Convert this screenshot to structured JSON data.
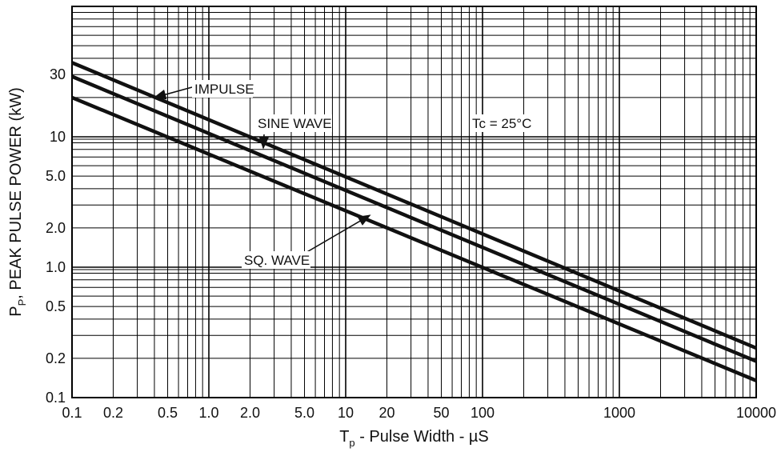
{
  "chart_data": {
    "type": "line",
    "x_scale": "log",
    "y_scale": "log",
    "xlim": [
      0.1,
      10000
    ],
    "ylim": [
      0.1,
      100
    ],
    "grid": true,
    "x_ticks": [
      {
        "value": 0.1,
        "label": "0.1"
      },
      {
        "value": 0.2,
        "label": "0.2"
      },
      {
        "value": 0.5,
        "label": "0.5"
      },
      {
        "value": 1,
        "label": "1.0"
      },
      {
        "value": 2,
        "label": "2.0"
      },
      {
        "value": 5,
        "label": "5.0"
      },
      {
        "value": 10,
        "label": "10"
      },
      {
        "value": 20,
        "label": "20"
      },
      {
        "value": 50,
        "label": "50"
      },
      {
        "value": 100,
        "label": "100"
      },
      {
        "value": 1000,
        "label": "1000"
      },
      {
        "value": 10000,
        "label": "10000"
      }
    ],
    "y_ticks": [
      {
        "value": 0.1,
        "label": "0.1"
      },
      {
        "value": 0.2,
        "label": "0.2"
      },
      {
        "value": 0.5,
        "label": "0.5"
      },
      {
        "value": 1,
        "label": "1.0"
      },
      {
        "value": 2,
        "label": "2.0"
      },
      {
        "value": 5,
        "label": "5.0"
      },
      {
        "value": 10,
        "label": "10"
      },
      {
        "value": 30,
        "label": "30"
      }
    ],
    "xlabel": {
      "main": "T",
      "sub": "p",
      "rest": " - Pulse Width - µS"
    },
    "ylabel": {
      "main": "P",
      "sub": "P",
      "rest": ", PEAK PULSE POWER (kW)"
    },
    "series": [
      {
        "name": "IMPULSE",
        "x": [
          0.1,
          10000
        ],
        "y": [
          37,
          0.24
        ]
      },
      {
        "name": "SINE WAVE",
        "x": [
          0.1,
          10000
        ],
        "y": [
          29,
          0.19
        ]
      },
      {
        "name": "SQ. WAVE",
        "x": [
          0.1,
          10000
        ],
        "y": [
          20,
          0.135
        ]
      }
    ],
    "annotations": [
      {
        "text": "IMPULSE",
        "x": 0.4,
        "y": 20
      },
      {
        "text": "SINE WAVE",
        "x": 2.5,
        "y": 8.2
      },
      {
        "text": "SQ. WAVE",
        "x": 15,
        "y": 2.5
      },
      {
        "text": "Tc = 25°C"
      }
    ]
  }
}
